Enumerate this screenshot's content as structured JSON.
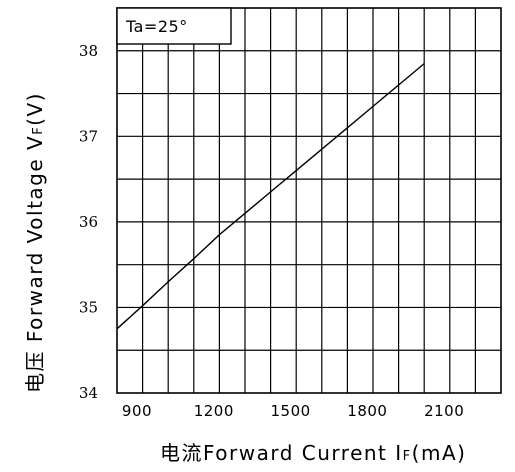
{
  "chart_data": {
    "type": "line",
    "condition_label": "Ta=25°",
    "xlabel": "电流Forward Current I",
    "xlabel_subscript": "F",
    "xlabel_unit": "(mA)",
    "ylabel": "电压 Forward Voltage V",
    "ylabel_subscript": "F",
    "ylabel_unit": "(V)",
    "xlim": [
      900,
      2400
    ],
    "ylim": [
      34,
      38.5
    ],
    "xticks": [
      900,
      1200,
      1500,
      1800,
      2100
    ],
    "yticks": [
      34,
      35,
      36,
      37,
      38
    ],
    "grid": true,
    "series": [
      {
        "x": [
          900,
          1000,
          1100,
          1200,
          1300,
          1400,
          1500,
          1600,
          1700,
          1800,
          1900,
          2000,
          2100
        ],
        "y": [
          34.75,
          35.02,
          35.3,
          35.57,
          35.85,
          36.1,
          36.35,
          36.6,
          36.85,
          37.1,
          37.35,
          37.6,
          37.85
        ]
      }
    ]
  }
}
